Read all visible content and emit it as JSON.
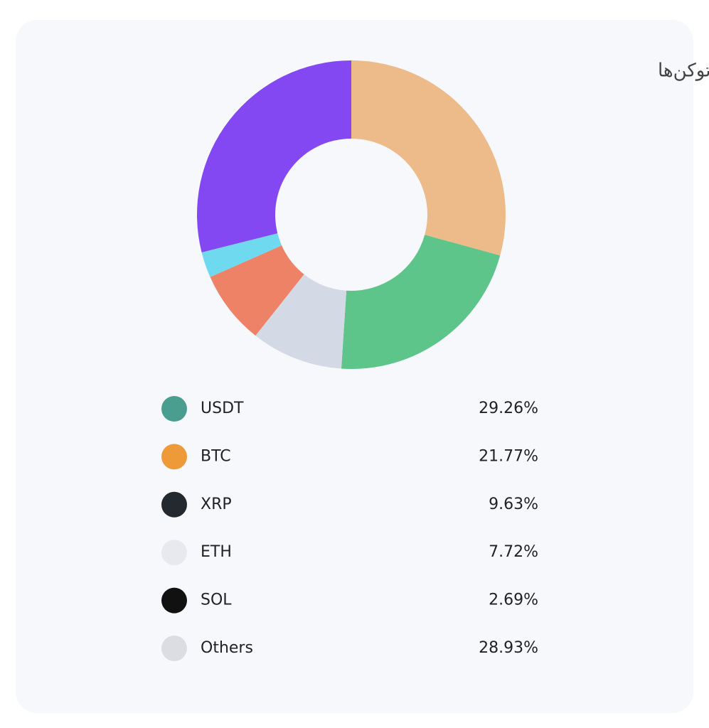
{
  "chart_data": {
    "type": "pie",
    "donut": true,
    "title": "توزیع توکن‌ها",
    "categories": [
      "USDT",
      "BTC",
      "XRP",
      "ETH",
      "SOL",
      "Others"
    ],
    "values": [
      29.26,
      21.77,
      9.63,
      7.72,
      2.69,
      28.93
    ],
    "value_labels": [
      "29.26%",
      "21.77%",
      "9.63%",
      "7.72%",
      "2.69%",
      "28.93%"
    ],
    "colors": [
      "#edbb8a",
      "#5ec58a",
      "#d3d9e5",
      "#ee8267",
      "#6fd9f0",
      "#8448f2"
    ]
  }
}
